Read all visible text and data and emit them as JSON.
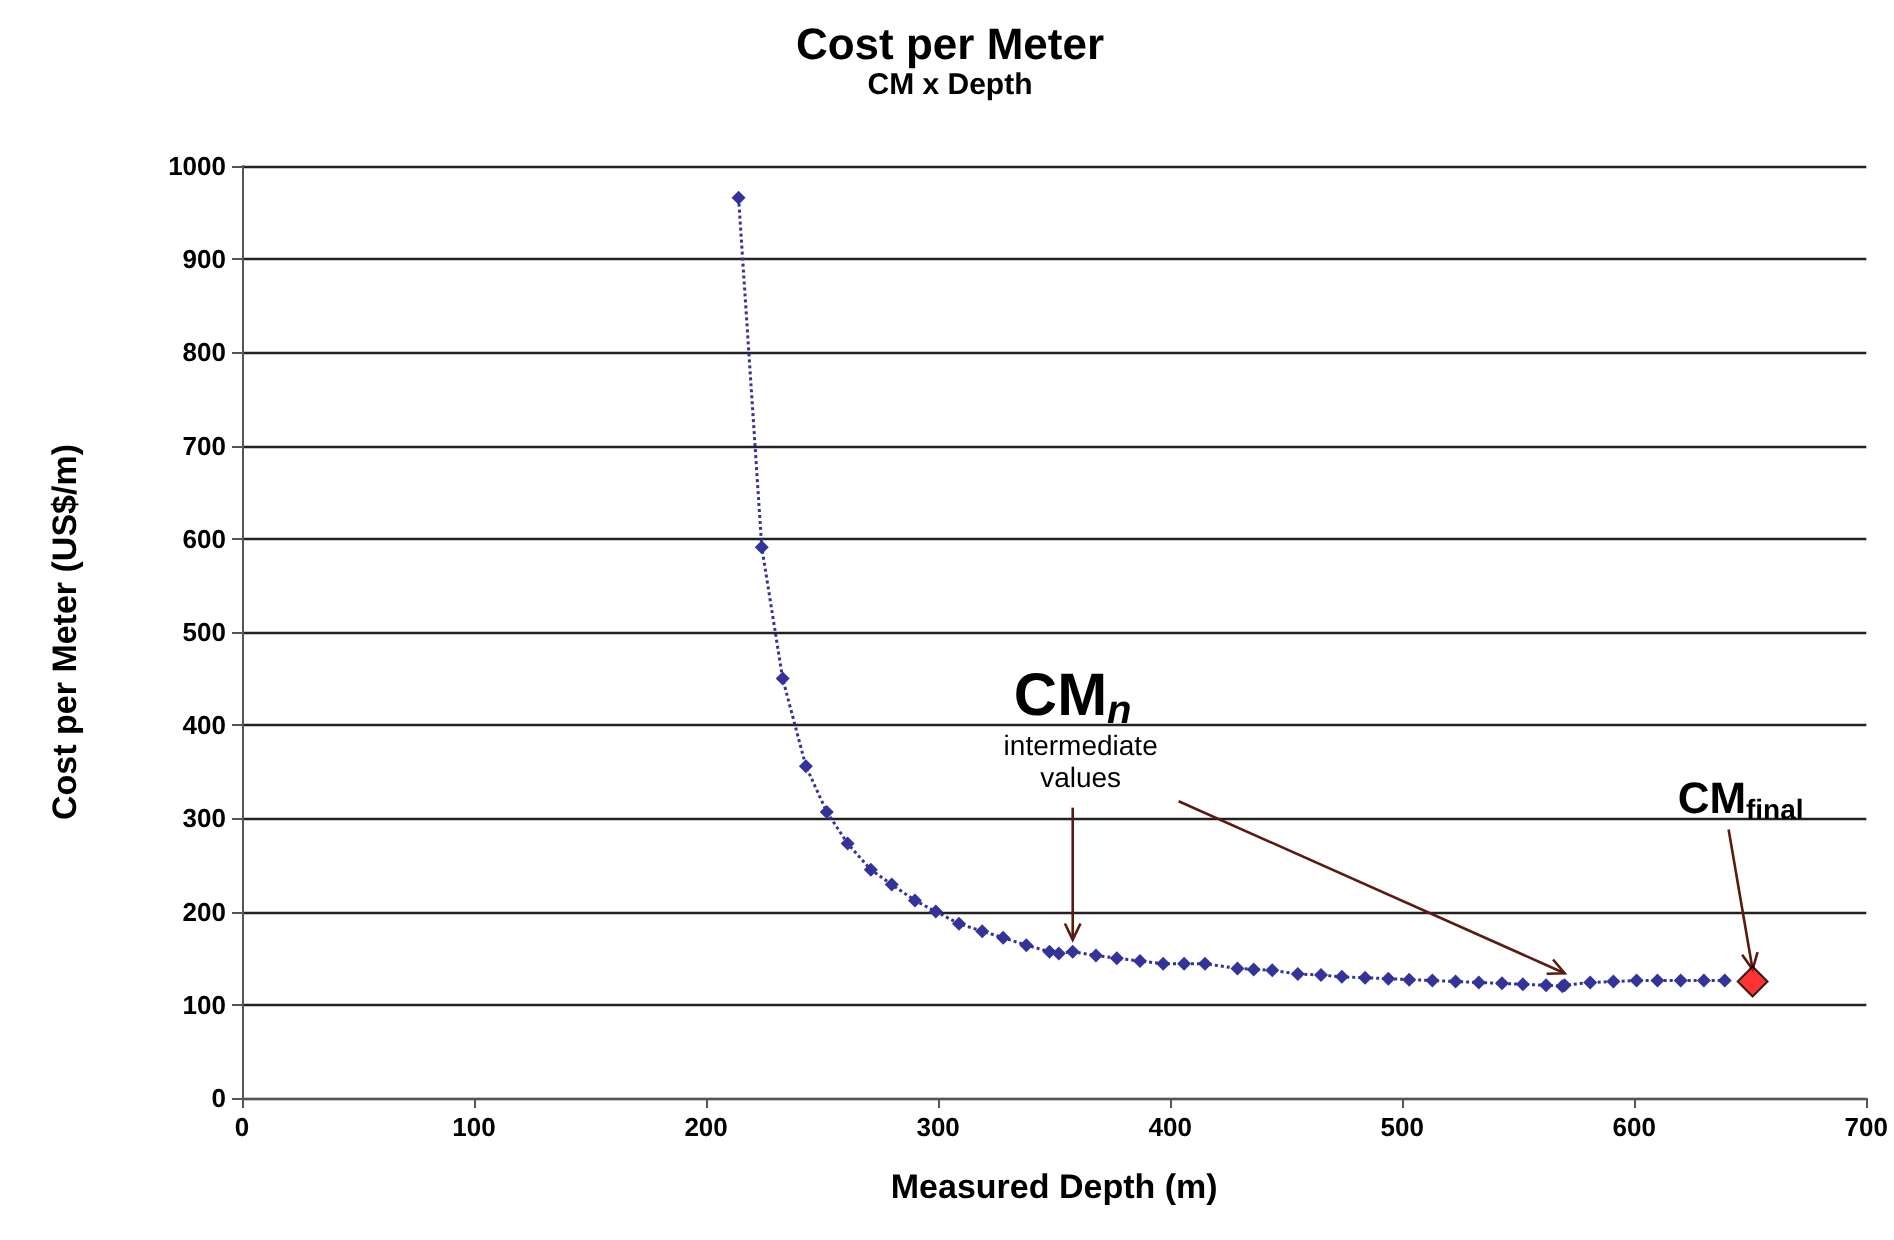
{
  "chart_data": {
    "type": "line",
    "title": "Cost per Meter",
    "subtitle": "CM x Depth",
    "xlabel": "Measured Depth (m)",
    "ylabel": "Cost per Meter (US$/m)",
    "xlim": [
      0,
      700
    ],
    "xticks": [
      0,
      100,
      200,
      300,
      400,
      500,
      600,
      700
    ],
    "ylim": [
      0,
      1000
    ],
    "yticks": [
      0,
      100,
      200,
      300,
      400,
      500,
      600,
      700,
      800,
      900,
      1000
    ],
    "grid": "y",
    "marker": "diamond",
    "line_style": "dotted",
    "series": [
      {
        "color": "#333399",
        "x": [
          214,
          224,
          233,
          243,
          252,
          261,
          271,
          280,
          290,
          299,
          309,
          319,
          328,
          338,
          348,
          352,
          358,
          368,
          377,
          387,
          397,
          406,
          415,
          429,
          436,
          444,
          455,
          465,
          474,
          484,
          494,
          503,
          513,
          523,
          533,
          543,
          552,
          562,
          569,
          570,
          581,
          591,
          601,
          610,
          620,
          630,
          639
        ],
        "values": [
          966,
          591,
          450,
          356,
          307,
          273,
          245,
          229,
          212,
          200,
          187,
          179,
          172,
          164,
          157,
          155,
          157,
          153,
          150,
          147,
          144,
          144,
          144,
          139,
          138,
          137,
          133,
          132,
          130,
          129,
          128,
          127,
          126,
          125,
          124,
          123,
          122,
          121,
          120,
          121,
          124,
          125,
          126,
          126,
          126,
          126,
          126
        ]
      },
      {
        "type": "scatter",
        "color": "#ff0000",
        "x": [
          651
        ],
        "values": [
          125
        ]
      }
    ],
    "annotations": [
      {
        "text": "CM$_{n}$",
        "x": 358,
        "y": 157
      },
      {
        "text": "intermediate values",
        "x": 570,
        "y": 121
      },
      {
        "text": "CM$_{final}$",
        "x": 651,
        "y": 125
      }
    ]
  }
}
